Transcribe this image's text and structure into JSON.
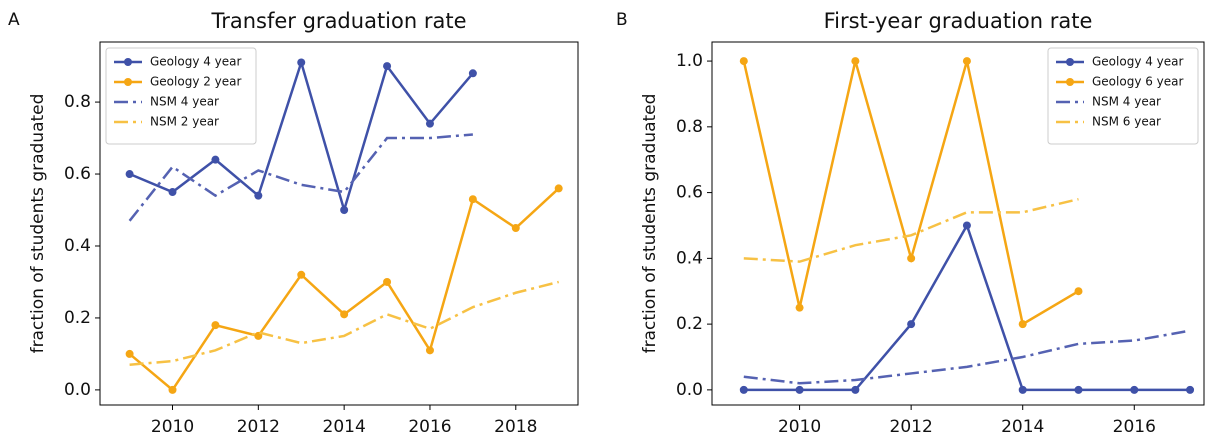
{
  "chart_data": [
    {
      "type": "line",
      "panel": "A",
      "title": "Transfer graduation rate",
      "ylabel": "fraction of students graduated",
      "xlim": [
        2008.31,
        2019.45
      ],
      "ylim": [
        -0.042,
        0.967
      ],
      "xticks": [
        2010,
        2012,
        2014,
        2016,
        2018
      ],
      "yticks": [
        {
          "value": 0,
          "label": "0.0"
        },
        0.2,
        0.4,
        0.6,
        0.8
      ],
      "legend": "upper left",
      "series": [
        {
          "name": "Geology 4 year",
          "color": "#3f51a8",
          "linestyle": "solid",
          "marker": true,
          "x": [
            2009,
            2010,
            2011,
            2012,
            2013,
            2014,
            2015,
            2016,
            2017
          ],
          "values": [
            0.6,
            0.55,
            0.64,
            0.54,
            0.91,
            0.5,
            0.9,
            0.74,
            0.88
          ]
        },
        {
          "name": "Geology 2 year",
          "color": "#f5a614",
          "linestyle": "solid",
          "marker": true,
          "x": [
            2009,
            2010,
            2011,
            2012,
            2013,
            2014,
            2015,
            2016,
            2017,
            2018,
            2019
          ],
          "values": [
            0.1,
            0.0,
            0.18,
            0.15,
            0.32,
            0.21,
            0.3,
            0.11,
            0.53,
            0.45,
            0.56
          ]
        },
        {
          "name": "NSM 4 year",
          "color": "#5562b2",
          "linestyle": "dashdot",
          "marker": false,
          "x": [
            2009,
            2010,
            2011,
            2012,
            2013,
            2014,
            2015,
            2016,
            2017
          ],
          "values": [
            0.47,
            0.62,
            0.54,
            0.61,
            0.57,
            0.55,
            0.7,
            0.7,
            0.71
          ]
        },
        {
          "name": "NSM 2 year",
          "color": "#f7c144",
          "linestyle": "dashdot",
          "marker": false,
          "x": [
            2009,
            2010,
            2011,
            2012,
            2013,
            2014,
            2015,
            2016,
            2017,
            2018,
            2019
          ],
          "values": [
            0.07,
            0.08,
            0.11,
            0.16,
            0.13,
            0.15,
            0.21,
            0.17,
            0.23,
            0.27,
            0.3
          ]
        }
      ]
    },
    {
      "type": "line",
      "panel": "B",
      "title": "First-year graduation rate",
      "ylabel": "fraction of students graduated",
      "xlim": [
        2008.43,
        2017.25
      ],
      "ylim": [
        -0.046,
        1.058
      ],
      "xticks": [
        2010,
        2012,
        2014,
        2016
      ],
      "yticks": [
        {
          "value": 0,
          "label": "0.0"
        },
        0.2,
        0.4,
        0.6,
        0.8,
        {
          "value": 1,
          "label": "1.0"
        }
      ],
      "legend": "upper right",
      "series": [
        {
          "name": "Geology 4 year",
          "color": "#3f51a8",
          "linestyle": "solid",
          "marker": true,
          "x": [
            2009,
            2010,
            2011,
            2012,
            2013,
            2014,
            2015,
            2016,
            2017
          ],
          "values": [
            0,
            0,
            0,
            0.2,
            0.5,
            0,
            0,
            0,
            0
          ]
        },
        {
          "name": "Geology 6 year",
          "color": "#f5a614",
          "linestyle": "solid",
          "marker": true,
          "x": [
            2009,
            2010,
            2011,
            2012,
            2013,
            2014,
            2015
          ],
          "values": [
            1.0,
            0.25,
            1.0,
            0.4,
            1.0,
            0.2,
            0.3
          ]
        },
        {
          "name": "NSM 4 year",
          "color": "#5562b2",
          "linestyle": "dashdot",
          "marker": false,
          "x": [
            2009,
            2010,
            2011,
            2012,
            2013,
            2014,
            2015,
            2016,
            2017
          ],
          "values": [
            0.04,
            0.02,
            0.03,
            0.05,
            0.07,
            0.1,
            0.14,
            0.15,
            0.18
          ]
        },
        {
          "name": "NSM 6 year",
          "color": "#f7c144",
          "linestyle": "dashdot",
          "marker": false,
          "x": [
            2009,
            2010,
            2011,
            2012,
            2013,
            2014,
            2015
          ],
          "values": [
            0.4,
            0.39,
            0.44,
            0.47,
            0.54,
            0.54,
            0.58
          ]
        }
      ]
    }
  ]
}
